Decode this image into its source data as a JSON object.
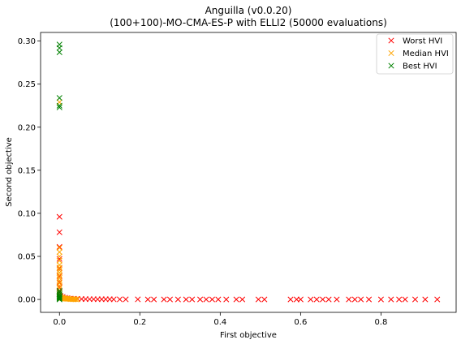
{
  "chart_data": {
    "type": "scatter",
    "title": "Anguilla (v0.0.20)",
    "subtitle": "(100+100)-MO-CMA-ES-P with ELLI2 (50000 evaluations)",
    "xlabel": "First objective",
    "ylabel": "Second objective",
    "xlim": [
      -0.047,
      0.987
    ],
    "ylim": [
      -0.015,
      0.31
    ],
    "xticks": [
      "0.0",
      "0.2",
      "0.4",
      "0.6",
      "0.8"
    ],
    "xtick_values": [
      0.0,
      0.2,
      0.4,
      0.6,
      0.8
    ],
    "yticks": [
      "0.00",
      "0.05",
      "0.10",
      "0.15",
      "0.20",
      "0.25",
      "0.30"
    ],
    "ytick_values": [
      0.0,
      0.05,
      0.1,
      0.15,
      0.2,
      0.25,
      0.3
    ],
    "grid": false,
    "legend_position": "top-right",
    "marker": "x",
    "series": [
      {
        "name": "Worst HVI",
        "color": "#ff0000",
        "points": [
          [
            0.0,
            0.096
          ],
          [
            0.0,
            0.078
          ],
          [
            0.0,
            0.061
          ],
          [
            0.0,
            0.047
          ],
          [
            0.0,
            0.036
          ],
          [
            0.0,
            0.027
          ],
          [
            0.0,
            0.02
          ],
          [
            0.0,
            0.014
          ],
          [
            0.0,
            0.009
          ],
          [
            0.0,
            0.006
          ],
          [
            0.003,
            0.004
          ],
          [
            0.008,
            0.003
          ],
          [
            0.014,
            0.002
          ],
          [
            0.02,
            0.0015
          ],
          [
            0.028,
            0.001
          ],
          [
            0.036,
            0.0008
          ],
          [
            0.045,
            0.0006
          ],
          [
            0.055,
            0.0005
          ],
          [
            0.065,
            0.0004
          ],
          [
            0.075,
            0.0003
          ],
          [
            0.085,
            0.0003
          ],
          [
            0.095,
            0.0002
          ],
          [
            0.105,
            0.0002
          ],
          [
            0.115,
            0.0002
          ],
          [
            0.125,
            0.0002
          ],
          [
            0.135,
            0.0001
          ],
          [
            0.15,
            0.0001
          ],
          [
            0.165,
            0.0001
          ],
          [
            0.195,
            0.0001
          ],
          [
            0.22,
            0.0
          ],
          [
            0.235,
            0.0
          ],
          [
            0.26,
            0.0
          ],
          [
            0.275,
            0.0
          ],
          [
            0.295,
            0.0
          ],
          [
            0.315,
            0.0
          ],
          [
            0.33,
            0.0
          ],
          [
            0.35,
            0.0
          ],
          [
            0.365,
            0.0
          ],
          [
            0.38,
            0.0
          ],
          [
            0.395,
            0.0
          ],
          [
            0.415,
            0.0
          ],
          [
            0.44,
            0.0
          ],
          [
            0.455,
            0.0
          ],
          [
            0.495,
            0.0
          ],
          [
            0.51,
            0.0
          ],
          [
            0.575,
            0.0
          ],
          [
            0.59,
            0.0
          ],
          [
            0.6,
            0.0
          ],
          [
            0.625,
            0.0
          ],
          [
            0.64,
            0.0
          ],
          [
            0.655,
            0.0
          ],
          [
            0.67,
            0.0
          ],
          [
            0.69,
            0.0
          ],
          [
            0.72,
            0.0
          ],
          [
            0.735,
            0.0
          ],
          [
            0.75,
            0.0
          ],
          [
            0.77,
            0.0
          ],
          [
            0.8,
            0.0
          ],
          [
            0.825,
            0.0
          ],
          [
            0.845,
            0.0
          ],
          [
            0.86,
            0.0
          ],
          [
            0.885,
            0.0
          ],
          [
            0.91,
            0.0
          ],
          [
            0.94,
            0.0
          ]
        ]
      },
      {
        "name": "Median HVI",
        "color": "#ffa500",
        "points": [
          [
            0.0,
            0.229
          ],
          [
            0.0,
            0.06
          ],
          [
            0.0,
            0.055
          ],
          [
            0.0,
            0.05
          ],
          [
            0.0,
            0.045
          ],
          [
            0.0,
            0.04
          ],
          [
            0.0,
            0.037
          ],
          [
            0.0,
            0.034
          ],
          [
            0.0,
            0.031
          ],
          [
            0.0,
            0.028
          ],
          [
            0.0,
            0.025
          ],
          [
            0.0,
            0.022
          ],
          [
            0.0,
            0.019
          ],
          [
            0.0,
            0.016
          ],
          [
            0.0,
            0.013
          ],
          [
            0.0,
            0.01
          ],
          [
            0.0,
            0.008
          ],
          [
            0.0,
            0.006
          ],
          [
            0.0,
            0.004
          ],
          [
            0.002,
            0.003
          ],
          [
            0.004,
            0.002
          ],
          [
            0.006,
            0.0018
          ],
          [
            0.008,
            0.0015
          ],
          [
            0.01,
            0.0013
          ],
          [
            0.012,
            0.0011
          ],
          [
            0.014,
            0.001
          ],
          [
            0.016,
            0.0009
          ],
          [
            0.018,
            0.0008
          ],
          [
            0.02,
            0.0007
          ],
          [
            0.023,
            0.0006
          ],
          [
            0.026,
            0.0005
          ],
          [
            0.029,
            0.0004
          ],
          [
            0.032,
            0.0003
          ],
          [
            0.035,
            0.0002
          ],
          [
            0.038,
            0.0002
          ],
          [
            0.041,
            0.0001
          ],
          [
            0.045,
            0.0001
          ]
        ]
      },
      {
        "name": "Best HVI",
        "color": "#008000",
        "points": [
          [
            0.0,
            0.296
          ],
          [
            0.0,
            0.292
          ],
          [
            0.0,
            0.287
          ],
          [
            0.0,
            0.234
          ],
          [
            0.0,
            0.225
          ],
          [
            0.0,
            0.223
          ],
          [
            0.0,
            0.01
          ],
          [
            0.0,
            0.008
          ],
          [
            0.0,
            0.006
          ],
          [
            0.0,
            0.004
          ],
          [
            0.0,
            0.003
          ],
          [
            0.0,
            0.002
          ],
          [
            0.0,
            0.001
          ],
          [
            0.0,
            0.0
          ]
        ]
      }
    ]
  }
}
